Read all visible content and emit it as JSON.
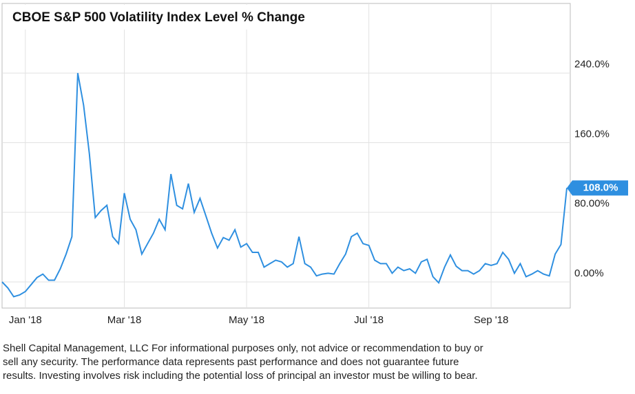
{
  "chart_data": {
    "type": "line",
    "title": "CBOE S&P 500 Volatility Index Level % Change",
    "categories": [
      null,
      null,
      null,
      null,
      "Jan '18",
      null,
      null,
      null,
      null,
      null,
      null,
      null,
      null,
      null,
      null,
      null,
      null,
      null,
      null,
      null,
      null,
      "Mar '18",
      null,
      null,
      null,
      null,
      null,
      null,
      null,
      null,
      null,
      null,
      null,
      null,
      null,
      null,
      null,
      null,
      null,
      null,
      null,
      null,
      "May '18",
      null,
      null,
      null,
      null,
      null,
      null,
      null,
      null,
      null,
      null,
      null,
      null,
      null,
      null,
      null,
      null,
      null,
      null,
      null,
      null,
      "Jul '18",
      null,
      null,
      null,
      null,
      null,
      null,
      null,
      null,
      null,
      null,
      null,
      null,
      null,
      null,
      null,
      null,
      null,
      null,
      null,
      null,
      "Sep '18",
      null,
      null,
      null,
      null,
      null,
      null,
      null,
      null,
      null,
      null,
      null,
      null,
      null
    ],
    "series": [
      {
        "name": "CBOE S&P 500 Volatility Index Level % Change",
        "color": "#2e8fe0",
        "values": [
          0,
          -7,
          -17,
          -15,
          -11,
          -3,
          5,
          9,
          2,
          2,
          15,
          32,
          52,
          240,
          203,
          147,
          74,
          82,
          88,
          52,
          44,
          102,
          72,
          60,
          32,
          44,
          56,
          72,
          60,
          124,
          88,
          84,
          113,
          80,
          96,
          76,
          56,
          39,
          51,
          48,
          60,
          40,
          44,
          34,
          34,
          17,
          21,
          25,
          23,
          17,
          21,
          52,
          21,
          17,
          7,
          9,
          10,
          9,
          21,
          32,
          52,
          56,
          44,
          42,
          25,
          21,
          21,
          10,
          17,
          13,
          15,
          10,
          23,
          26,
          6,
          -1,
          17,
          31,
          18,
          13,
          13,
          9,
          13,
          21,
          19,
          21,
          34,
          26,
          10,
          21,
          6,
          9,
          13,
          9,
          7,
          32,
          43,
          108
        ],
        "value_labels": [
          null,
          null,
          null,
          null,
          null,
          null,
          null,
          null,
          null,
          null,
          null,
          null,
          null,
          null,
          null,
          null,
          null,
          null,
          null,
          null,
          null,
          null,
          null,
          null,
          null,
          null,
          null,
          null,
          null,
          null,
          null,
          null,
          null,
          null,
          null,
          null,
          null,
          null,
          null,
          null,
          null,
          null,
          null,
          null,
          null,
          null,
          null,
          null,
          null,
          null,
          null,
          null,
          null,
          null,
          null,
          null,
          null,
          null,
          null,
          null,
          null,
          null,
          null,
          null,
          null,
          null,
          null,
          null,
          null,
          null,
          null,
          null,
          null,
          null,
          null,
          null,
          null,
          null,
          null,
          null,
          null,
          null,
          null,
          null,
          null,
          null,
          null,
          null,
          null,
          null,
          null,
          null,
          null,
          null,
          null,
          null,
          null,
          "108.0%"
        ]
      }
    ],
    "ylim": [
      -30,
      320
    ],
    "yticks": [
      {
        "value": 0,
        "label": "0.00%"
      },
      {
        "value": 80,
        "label": "80.00%"
      },
      {
        "value": 160,
        "label": "160.0%"
      },
      {
        "value": 240,
        "label": "240.0%"
      }
    ],
    "grid": true,
    "footnote": [
      "Shell Capital Management, LLC For informational purposes only, not advice or recommendation to buy or",
      "sell any security. The performance data represents past performance and does not guarantee future",
      "results. Investing involves risk including the potential loss of principal an investor must be willing to bear."
    ]
  }
}
